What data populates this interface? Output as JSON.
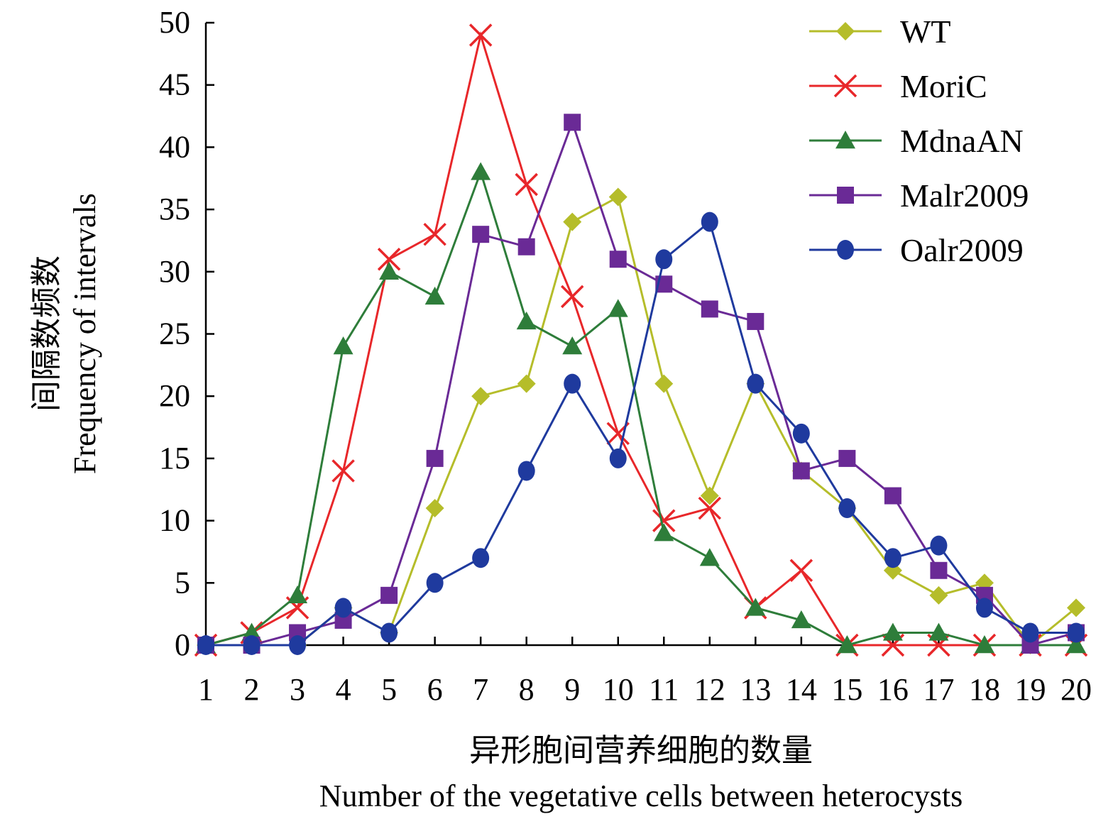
{
  "chart_data": {
    "type": "line",
    "title": "",
    "ylabel_zh": "间隔数频数",
    "ylabel": "Frequency of intervals",
    "xlabel_zh": "异形胞间营养细胞的数量",
    "xlabel": "Number of the vegetative cells between heterocysts",
    "categories": [
      1,
      2,
      3,
      4,
      5,
      6,
      7,
      8,
      9,
      10,
      11,
      12,
      13,
      14,
      15,
      16,
      17,
      18,
      19,
      20
    ],
    "ylim": [
      0,
      50
    ],
    "yticks": [
      0,
      5,
      10,
      15,
      20,
      25,
      30,
      35,
      40,
      45,
      50
    ],
    "grid": false,
    "legend_position": "top-right",
    "series": [
      {
        "name": "WT",
        "color": "#b5bd2a",
        "marker": "diamond",
        "values": [
          0,
          0,
          0,
          3,
          1,
          11,
          20,
          21,
          34,
          36,
          21,
          12,
          21,
          14,
          11,
          6,
          4,
          5,
          0,
          3
        ]
      },
      {
        "name": "MoriC",
        "color": "#e8272a",
        "marker": "cross",
        "values": [
          0,
          1,
          3,
          14,
          31,
          33,
          49,
          37,
          28,
          17,
          10,
          11,
          3,
          6,
          0,
          0,
          0,
          0,
          0,
          0
        ]
      },
      {
        "name": "MdnaAN",
        "color": "#2e7d3a",
        "marker": "triangle",
        "values": [
          0,
          1,
          4,
          24,
          30,
          28,
          38,
          26,
          24,
          27,
          9,
          7,
          3,
          2,
          0,
          1,
          1,
          0,
          0,
          0
        ]
      },
      {
        "name": "Malr2009",
        "color": "#6a2a96",
        "marker": "square",
        "values": [
          0,
          0,
          1,
          2,
          4,
          15,
          33,
          32,
          42,
          31,
          29,
          27,
          26,
          14,
          15,
          12,
          6,
          4,
          0,
          1
        ]
      },
      {
        "name": "Oalr2009",
        "color": "#1f3a9e",
        "marker": "circle",
        "values": [
          0,
          0,
          0,
          3,
          1,
          5,
          7,
          14,
          21,
          15,
          31,
          34,
          21,
          17,
          11,
          7,
          8,
          3,
          1,
          1
        ]
      }
    ]
  }
}
